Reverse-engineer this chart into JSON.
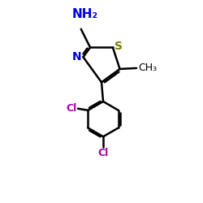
{
  "background_color": "#ffffff",
  "bond_color": "#000000",
  "N_color": "#0000dd",
  "S_color": "#808000",
  "Cl_color": "#aa00aa",
  "C_color": "#000000",
  "label_NH2": "NH₂",
  "label_N": "N",
  "label_S": "S",
  "label_CH3": "CH₃",
  "label_Cl1": "Cl",
  "label_Cl2": "Cl",
  "figsize": [
    2.5,
    2.5
  ],
  "dpi": 100
}
